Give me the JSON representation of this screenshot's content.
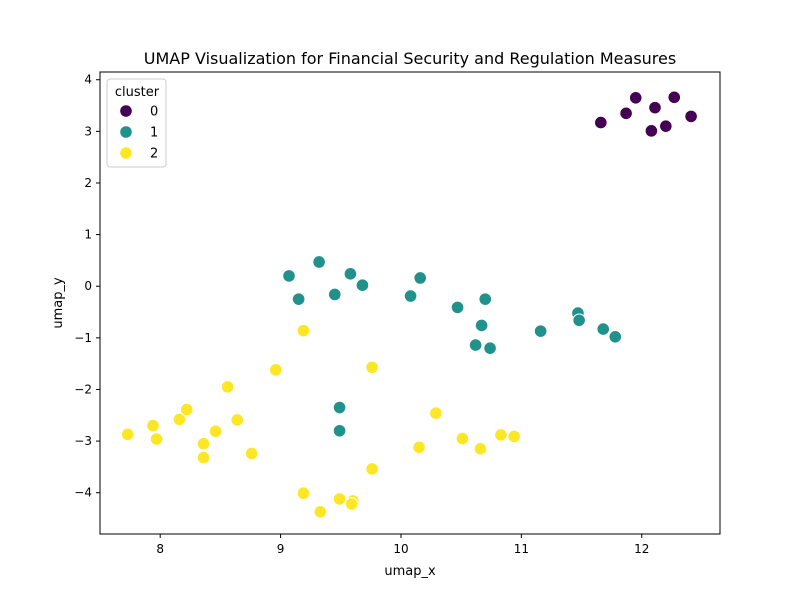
{
  "chart_data": {
    "type": "scatter",
    "title": "UMAP Visualization for Financial Security and Regulation Measures",
    "xlabel": "umap_x",
    "ylabel": "umap_y",
    "xlim": [
      7.5,
      12.65
    ],
    "ylim": [
      -4.8,
      4.15
    ],
    "xticks": [
      8,
      9,
      10,
      11,
      12
    ],
    "yticks": [
      -4,
      -3,
      -2,
      -1,
      0,
      1,
      2,
      3,
      4
    ],
    "grid": false,
    "legend": {
      "title": "cluster",
      "placement": "top-left"
    },
    "series": [
      {
        "name": "0",
        "color": "#440154",
        "points": [
          [
            11.66,
            3.17
          ],
          [
            11.87,
            3.35
          ],
          [
            11.95,
            3.65
          ],
          [
            12.08,
            3.01
          ],
          [
            12.11,
            3.46
          ],
          [
            12.2,
            3.1
          ],
          [
            12.27,
            3.66
          ],
          [
            12.41,
            3.29
          ]
        ]
      },
      {
        "name": "1",
        "color": "#21918c",
        "points": [
          [
            9.07,
            0.2
          ],
          [
            9.15,
            -0.25
          ],
          [
            9.32,
            0.47
          ],
          [
            9.45,
            -0.16
          ],
          [
            9.58,
            0.24
          ],
          [
            9.68,
            0.02
          ],
          [
            10.08,
            -0.19
          ],
          [
            10.16,
            0.16
          ],
          [
            10.47,
            -0.41
          ],
          [
            10.67,
            -0.76
          ],
          [
            10.7,
            -0.25
          ],
          [
            10.62,
            -1.14
          ],
          [
            10.74,
            -1.2
          ],
          [
            11.16,
            -0.87
          ],
          [
            11.47,
            -0.52
          ],
          [
            11.48,
            -0.66
          ],
          [
            11.68,
            -0.83
          ],
          [
            11.78,
            -0.98
          ],
          [
            9.49,
            -2.35
          ],
          [
            9.49,
            -2.8
          ]
        ]
      },
      {
        "name": "2",
        "color": "#fde725",
        "points": [
          [
            7.73,
            -2.87
          ],
          [
            7.94,
            -2.7
          ],
          [
            7.97,
            -2.96
          ],
          [
            8.16,
            -2.58
          ],
          [
            8.22,
            -2.39
          ],
          [
            8.36,
            -3.05
          ],
          [
            8.36,
            -3.32
          ],
          [
            8.46,
            -2.81
          ],
          [
            8.56,
            -1.95
          ],
          [
            8.64,
            -2.59
          ],
          [
            8.76,
            -3.24
          ],
          [
            8.96,
            -1.62
          ],
          [
            9.19,
            -0.86
          ],
          [
            9.19,
            -4.01
          ],
          [
            9.33,
            -4.37
          ],
          [
            9.49,
            -4.12
          ],
          [
            9.6,
            -4.16
          ],
          [
            9.59,
            -4.22
          ],
          [
            9.76,
            -1.57
          ],
          [
            9.76,
            -3.54
          ],
          [
            10.15,
            -3.12
          ],
          [
            10.29,
            -2.46
          ],
          [
            10.51,
            -2.95
          ],
          [
            10.66,
            -3.15
          ],
          [
            10.83,
            -2.88
          ],
          [
            10.94,
            -2.91
          ]
        ]
      }
    ]
  }
}
